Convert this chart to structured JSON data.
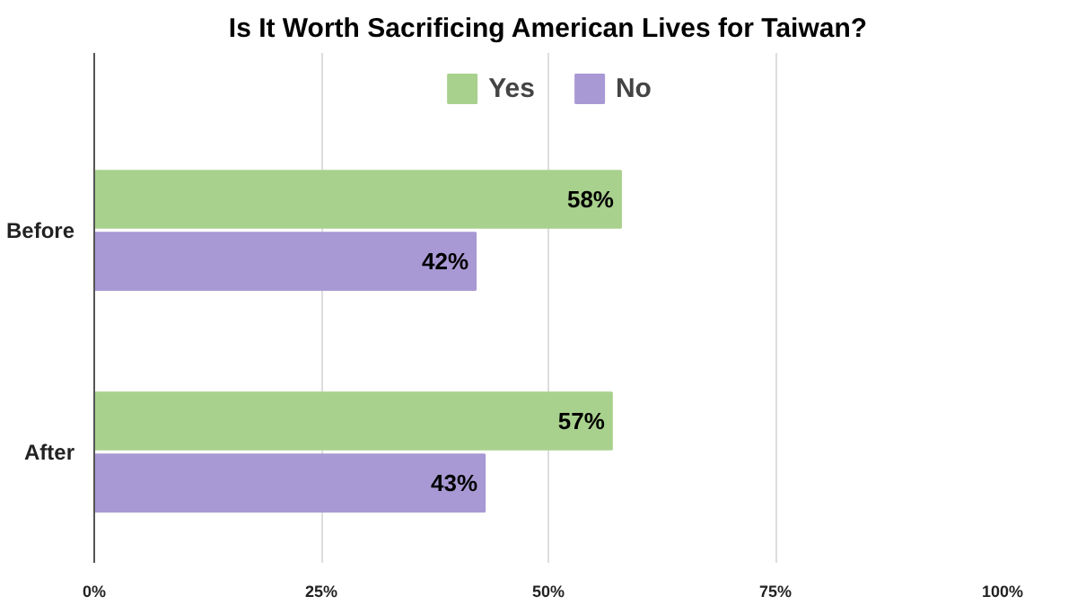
{
  "chart_data": {
    "type": "bar",
    "orientation": "horizontal",
    "title": "Is It Worth Sacrificing American Lives for Taiwan?",
    "categories": [
      "Before",
      "After"
    ],
    "series": [
      {
        "name": "Yes",
        "color": "#a9d18e",
        "values": [
          58,
          57
        ],
        "value_labels": [
          "58%",
          "57%"
        ]
      },
      {
        "name": "No",
        "color": "#a899d4",
        "values": [
          42,
          43
        ],
        "value_labels": [
          "42%",
          "43%"
        ]
      }
    ],
    "xlim": [
      0,
      100
    ],
    "xticks": [
      {
        "value": 0,
        "label": "0%"
      },
      {
        "value": 25,
        "label": "25%"
      },
      {
        "value": 50,
        "label": "50%"
      },
      {
        "value": 75,
        "label": "75%"
      },
      {
        "value": 100,
        "label": "100%"
      }
    ],
    "grid": "x",
    "legend": "top"
  }
}
